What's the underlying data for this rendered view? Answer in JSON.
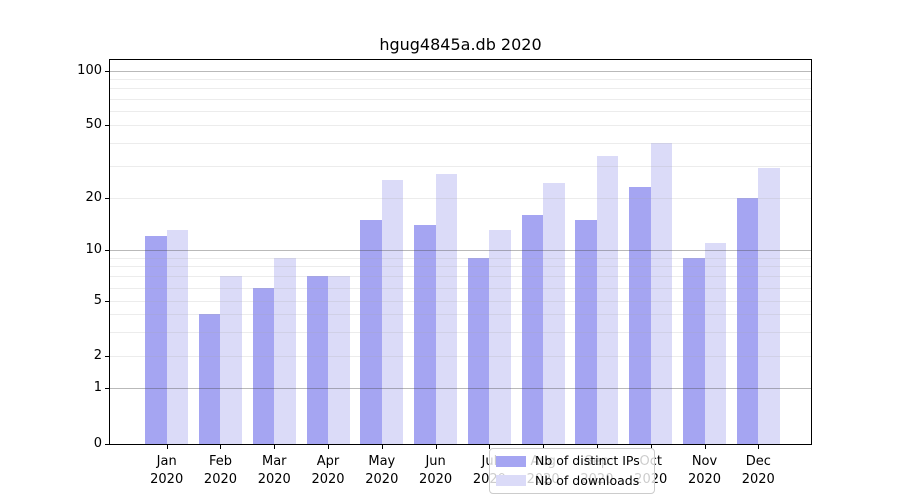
{
  "title": "hgug4845a.db 2020",
  "colors": {
    "ips_bar": "#a5a5f2",
    "downloads_bar": "#dbdbf8",
    "major_gridline": "rgba(70,70,70,0.38)",
    "minor_gridline": "rgba(170,170,170,0.22)",
    "axis": "#000000"
  },
  "legend": {
    "items": [
      {
        "key": "ips_bar",
        "label": "Nb of distinct IPs"
      },
      {
        "key": "downloads_bar",
        "label": "Nb of downloads"
      }
    ]
  },
  "y_axis": {
    "tick_values": [
      0,
      1,
      2,
      5,
      10,
      20,
      50,
      100
    ],
    "tick_labels": [
      "0",
      "1",
      "2",
      "5",
      "10",
      "20",
      "50",
      "100"
    ],
    "major_gridlines": [
      1,
      10,
      100
    ],
    "minor_gridlines": [
      2,
      3,
      4,
      5,
      6,
      7,
      8,
      9,
      20,
      30,
      40,
      50,
      60,
      70,
      80,
      90
    ]
  },
  "x_axis": {
    "months": [
      "Jan",
      "Feb",
      "Mar",
      "Apr",
      "May",
      "Jun",
      "Jul",
      "Aug",
      "Sep",
      "Oct",
      "Nov",
      "Dec"
    ],
    "year": "2020"
  },
  "chart_data": {
    "type": "bar",
    "title": "hgug4845a.db 2020",
    "categories": [
      "Jan 2020",
      "Feb 2020",
      "Mar 2020",
      "Apr 2020",
      "May 2020",
      "Jun 2020",
      "Jul 2020",
      "Aug 2020",
      "Sep 2020",
      "Oct 2020",
      "Nov 2020",
      "Dec 2020"
    ],
    "series": [
      {
        "name": "Nb of distinct IPs",
        "key": "ips_bar",
        "values": [
          12,
          4,
          6,
          7,
          15,
          14,
          9,
          16,
          15,
          23,
          9,
          20
        ]
      },
      {
        "name": "Nb of downloads",
        "key": "downloads_bar",
        "values": [
          13,
          7,
          9,
          7,
          25,
          27,
          13,
          24,
          34,
          40,
          11,
          29
        ]
      }
    ],
    "xlabel": "",
    "ylabel": "",
    "yscale": "log-like with zero baseline (ticks 0,1,2,5,10,20,50,100)",
    "ylim": [
      0,
      115
    ],
    "grid": true,
    "legend_position": "lower center inside plot"
  }
}
